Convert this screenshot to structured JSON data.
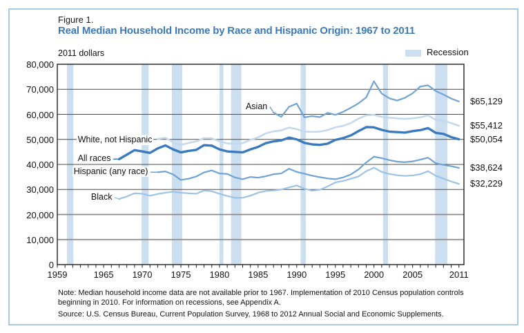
{
  "page": {
    "figure_label": "Figure 1.",
    "title": "Real Median Household Income by Race and Hispanic Origin: 1967 to 2011",
    "title_color": "#3e7ab8",
    "unit_label": "2011 dollars",
    "note_lines": [
      "Note: Median household income data are not available prior to 1967. Implementation of 2010 Census population controls",
      "beginning in 2010. For information on recessions, see Appendix A."
    ],
    "source": "Source: U.S. Census Bureau, Current Population Survey, 1968 to 2012 Annual Social and Economic Supplements."
  },
  "chart_data": {
    "type": "line",
    "title": "Real Median Household Income by Race and Hispanic Origin: 1967 to 2011",
    "ylabel": "2011 dollars",
    "xlabel": "",
    "grid": true,
    "legend": {
      "label": "Recession",
      "position": "top-right"
    },
    "colors": {
      "recession_band": "#ccdff1",
      "grid": "#4c4c4c",
      "grid_heavy": "#8a8a8a",
      "axis": "#1f1f1f"
    },
    "x_axis": {
      "min": 1959,
      "max": 2011.65,
      "labeled_ticks": [
        1959,
        1965,
        1970,
        1975,
        1980,
        1985,
        1990,
        1995,
        2000,
        2005,
        2011
      ],
      "minor_tick_every_year": true
    },
    "y_axis": {
      "min": 0,
      "max": 80000,
      "tick_interval": 10000,
      "tick_labels": [
        "0",
        "10,000",
        "20,000",
        "30,000",
        "40,000",
        "50,000",
        "60,000",
        "70,000",
        "80,000"
      ]
    },
    "recessions": [
      [
        1960.25,
        1961.08
      ],
      [
        1969.92,
        1970.83
      ],
      [
        1973.83,
        1975.17
      ],
      [
        1980.0,
        1980.5
      ],
      [
        1981.5,
        1982.83
      ],
      [
        1990.5,
        1991.17
      ],
      [
        2001.17,
        2001.83
      ],
      [
        2007.92,
        2009.5
      ]
    ],
    "series": [
      {
        "id": "white_not_hispanic",
        "label": "White, not Hispanic",
        "end_label": "$55,412",
        "color": "#c3d9ee",
        "width": 2.6,
        "start_year": 1972,
        "values": [
          50200,
          50600,
          48900,
          47800,
          48600,
          49200,
          50500,
          50400,
          49200,
          48400,
          48300,
          48500,
          49800,
          50800,
          52400,
          53200,
          53600,
          54700,
          54100,
          53100,
          53000,
          53100,
          53700,
          54800,
          55400,
          56500,
          58300,
          59600,
          59800,
          59000,
          58600,
          58400,
          58200,
          58400,
          58800,
          59600,
          57800,
          57400,
          56500,
          55412
        ]
      },
      {
        "id": "asian",
        "label": "Asian",
        "end_label": "$65,129",
        "color": "#6fa3d4",
        "width": 2.2,
        "start_year": 1987,
        "values": [
          60700,
          59000,
          63000,
          64300,
          58800,
          59300,
          58900,
          60600,
          59800,
          61000,
          62600,
          64400,
          66800,
          73200,
          68300,
          66400,
          65500,
          66600,
          68400,
          71100,
          71600,
          69300,
          67900,
          66300,
          65129
        ]
      },
      {
        "id": "hispanic",
        "label": "Hispanic (any race)",
        "end_label": "$38,624",
        "color": "#6fa3d4",
        "width": 2.2,
        "start_year": 1972,
        "values": [
          36900,
          37200,
          36000,
          33800,
          34300,
          35200,
          36800,
          37600,
          36400,
          36200,
          34800,
          34100,
          35000,
          34700,
          35300,
          36100,
          36400,
          38300,
          37000,
          36300,
          35500,
          34900,
          34400,
          34100,
          34800,
          36000,
          38000,
          40800,
          43100,
          42500,
          41700,
          41100,
          40900,
          41200,
          41900,
          42700,
          40500,
          39800,
          39300,
          38624
        ]
      },
      {
        "id": "black",
        "label": "Black",
        "end_label": "$32,229",
        "color": "#9cc2e5",
        "width": 2.2,
        "start_year": 1967,
        "values": [
          26200,
          27200,
          28500,
          28300,
          27500,
          28200,
          28700,
          29100,
          28700,
          28500,
          28300,
          29600,
          29300,
          28300,
          27400,
          26700,
          26700,
          27500,
          28700,
          29400,
          29600,
          30000,
          30800,
          31600,
          30300,
          29500,
          29900,
          31200,
          32800,
          33400,
          34300,
          35200,
          37300,
          38700,
          37000,
          36200,
          35700,
          35400,
          35600,
          36100,
          37300,
          35500,
          34300,
          33200,
          32229
        ]
      },
      {
        "id": "all_races",
        "label": "All races",
        "end_label": "$50,054",
        "color": "#3a7abf",
        "width": 3.4,
        "start_year": 1967,
        "values": [
          42100,
          43900,
          45700,
          45200,
          44600,
          46400,
          47600,
          46000,
          44800,
          45400,
          45800,
          47700,
          47500,
          46000,
          45200,
          45000,
          44800,
          46000,
          47000,
          48500,
          49200,
          49600,
          50700,
          50000,
          48600,
          48000,
          47800,
          48300,
          49800,
          50500,
          51600,
          53300,
          54900,
          54800,
          53800,
          53100,
          52900,
          52700,
          53300,
          53700,
          54500,
          52600,
          52200,
          50900,
          50054
        ]
      }
    ]
  }
}
